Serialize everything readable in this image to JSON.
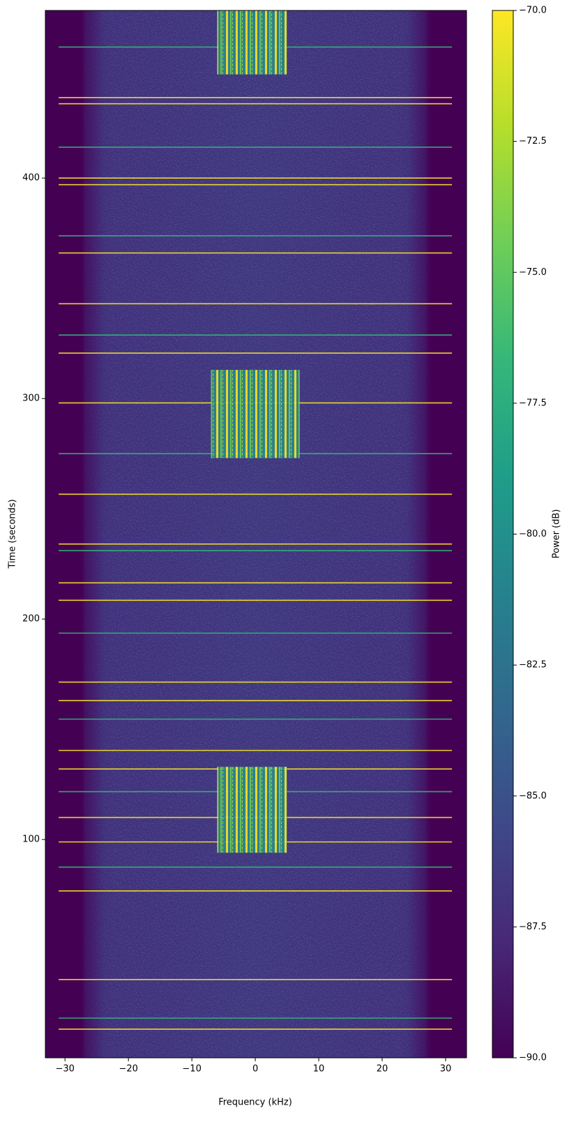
{
  "chart_data": {
    "type": "spectrogram",
    "x_label": "Frequency (kHz)",
    "y_label": "Time (seconds)",
    "colorbar_label": "Power (dB)",
    "xlim": [
      -33.1,
      33.3
    ],
    "ylim": [
      1,
      476
    ],
    "xticks": [
      {
        "value": -30,
        "label": "−30"
      },
      {
        "value": -20,
        "label": "−20"
      },
      {
        "value": -10,
        "label": "−10"
      },
      0,
      10,
      20,
      30
    ],
    "yticks": [
      100,
      200,
      300,
      400
    ],
    "clim": [
      -90,
      -70
    ],
    "cticks": [
      {
        "value": -90,
        "label": "−90.0"
      },
      {
        "value": -87.5,
        "label": "−87.5"
      },
      {
        "value": -85,
        "label": "−85.0"
      },
      {
        "value": -82.5,
        "label": "−82.5"
      },
      {
        "value": -80,
        "label": "−80.0"
      },
      {
        "value": -77.5,
        "label": "−77.5"
      },
      {
        "value": -75,
        "label": "−75.0"
      },
      {
        "value": -72.5,
        "label": "−72.5"
      },
      {
        "value": -70,
        "label": "−70.0"
      }
    ],
    "cmap": [
      "#440154",
      "#482878",
      "#3e4989",
      "#31688e",
      "#26828e",
      "#1f9e89",
      "#35b779",
      "#6ece58",
      "#b5de2b",
      "#fde725"
    ],
    "noise_band": [
      -27,
      27
    ],
    "line_span": [
      -31,
      31
    ],
    "line_times": [
      459.4,
      436.5,
      433.7,
      414,
      400,
      397,
      373.8,
      366,
      343,
      328.8,
      320.6,
      298,
      275,
      256.6,
      234,
      231,
      216.4,
      208.5,
      193.6,
      171.4,
      163,
      154.6,
      140.4,
      132,
      121.7,
      110,
      98.9,
      87.5,
      76.7,
      36.5,
      19,
      14
    ],
    "bursts": [
      {
        "x": [
          -6,
          5
        ],
        "y": [
          94,
          133
        ]
      },
      {
        "x": [
          -7,
          7
        ],
        "y": [
          273,
          313
        ]
      },
      {
        "x": [
          -6,
          5
        ],
        "y": [
          447,
          476
        ]
      }
    ]
  }
}
